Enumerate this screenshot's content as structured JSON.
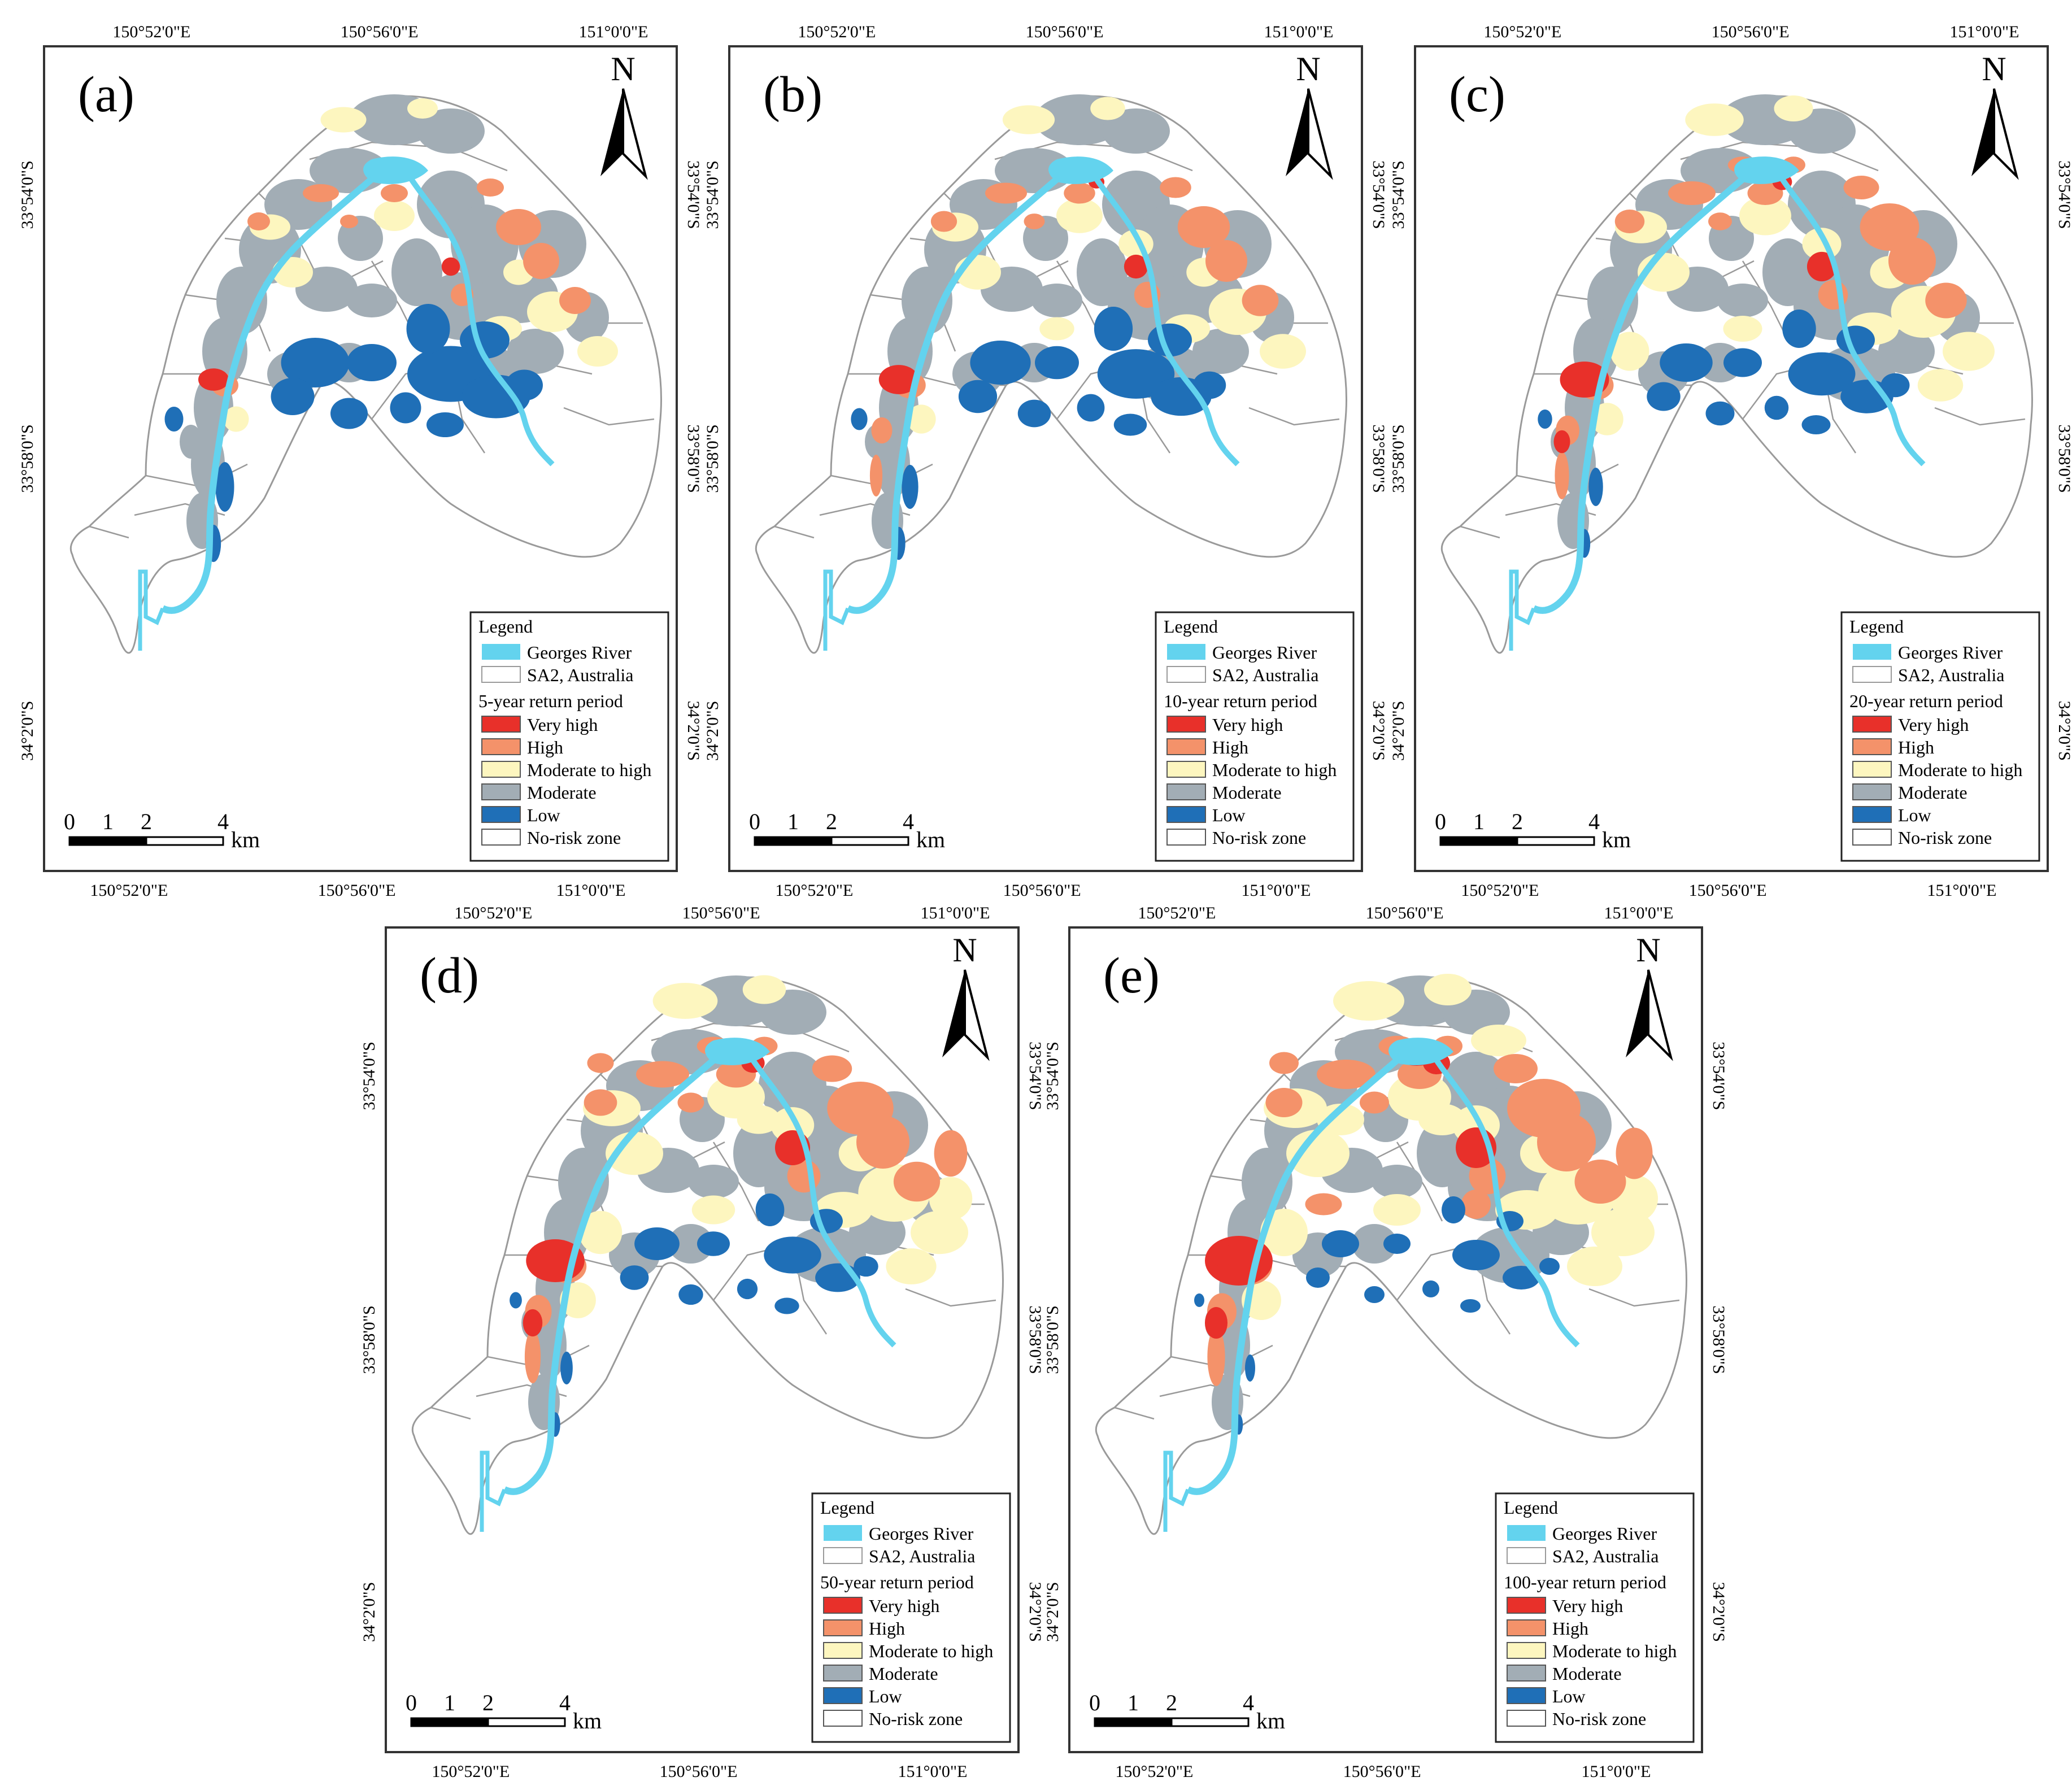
{
  "figure": {
    "panels": [
      {
        "label": "(a)",
        "return_period": "5-year return period",
        "top_lon_labels": [
          "150°52'0\"E",
          "150°56'0\"E",
          "151°0'0\"E"
        ],
        "bottom_lon_labels": [
          "150°52'0\"E",
          "150°56'0\"E",
          "151°0'0\"E"
        ],
        "left_lat_labels": [
          "33°54'0\"S",
          "33°58'0\"S",
          "34°2'0\"S"
        ],
        "right_lat_labels": [
          "33°54'0\"S",
          "33°58'0\"S",
          "34°2'0\"S"
        ]
      },
      {
        "label": "(b)",
        "return_period": "10-year return period",
        "top_lon_labels": [
          "150°52'0\"E",
          "150°56'0\"E",
          "151°0'0\"E"
        ],
        "bottom_lon_labels": [
          "150°52'0\"E",
          "150°56'0\"E",
          "151°0'0\"E"
        ],
        "left_lat_labels": [
          "33°54'0\"S",
          "33°58'0\"S",
          "34°2'0\"S"
        ],
        "right_lat_labels": [
          "33°54'0\"S",
          "33°58'0\"S",
          "34°2'0\"S"
        ]
      },
      {
        "label": "(c)",
        "return_period": "20-year return period",
        "top_lon_labels": [
          "150°52'0\"E",
          "150°56'0\"E",
          "151°0'0\"E"
        ],
        "bottom_lon_labels": [
          "150°52'0\"E",
          "150°56'0\"E",
          "151°0'0\"E"
        ],
        "left_lat_labels": [
          "33°54'0\"S",
          "33°58'0\"S",
          "34°2'0\"S"
        ],
        "right_lat_labels": [
          "33°54'0\"S",
          "33°58'0\"S",
          "34°2'0\"S"
        ]
      },
      {
        "label": "(d)",
        "return_period": "50-year return period",
        "top_lon_labels": [
          "150°52'0\"E",
          "150°56'0\"E",
          "151°0'0\"E"
        ],
        "bottom_lon_labels": [
          "150°52'0\"E",
          "150°56'0\"E",
          "151°0'0\"E"
        ],
        "left_lat_labels": [
          "33°54'0\"S",
          "33°58'0\"S",
          "34°2'0\"S"
        ],
        "right_lat_labels": [
          "33°54'0\"S",
          "33°58'0\"S",
          "34°2'0\"S"
        ]
      },
      {
        "label": "(e)",
        "return_period": "100-year return period",
        "top_lon_labels": [
          "150°52'0\"E",
          "150°56'0\"E",
          "151°0'0\"E"
        ],
        "bottom_lon_labels": [
          "150°52'0\"E",
          "150°56'0\"E",
          "151°0'0\"E"
        ],
        "left_lat_labels": [
          "33°54'0\"S",
          "33°58'0\"S",
          "34°2'0\"S"
        ],
        "right_lat_labels": [
          "33°54'0\"S",
          "33°58'0\"S",
          "34°2'0\"S"
        ]
      }
    ],
    "north_label": "N",
    "scale": {
      "ticks": [
        "0",
        "1",
        "2",
        "4"
      ],
      "unit": "km"
    },
    "legend": {
      "title": "Legend",
      "river": "Georges River",
      "sa2": "SA2, Australia",
      "classes": [
        {
          "label": "Very high",
          "color": "#e8302a"
        },
        {
          "label": "High",
          "color": "#f4926a"
        },
        {
          "label": "Moderate to high",
          "color": "#fdf6bf"
        },
        {
          "label": "Moderate",
          "color": "#a2adb5"
        },
        {
          "label": "Low",
          "color": "#1f6fb7"
        },
        {
          "label": "No-risk zone",
          "color": "#ffffff"
        }
      ]
    },
    "colors": {
      "river": "#63d3ee",
      "boundary": "#9a9a9a",
      "frame": "#333333"
    }
  }
}
